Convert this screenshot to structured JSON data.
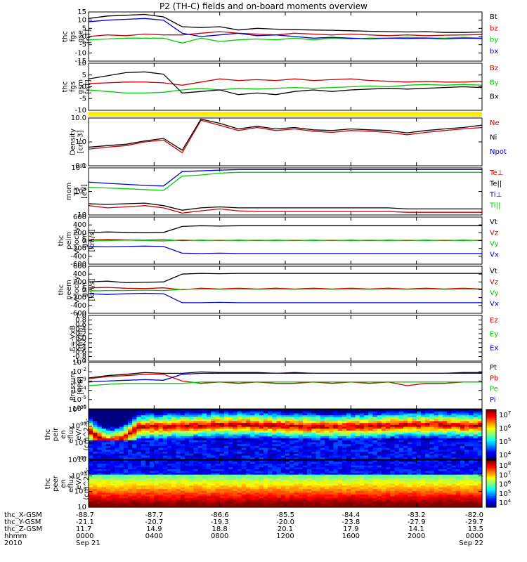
{
  "title": "P2 (TH-C) fields and on-board moments overview",
  "chart_data": {
    "type": "line",
    "title": "P2 (TH-C) fields and on-board moments overview",
    "panels": [
      {
        "id": "fgs_gse",
        "ylabel": [
          "thc",
          "fgs",
          "gse",
          "[nT]"
        ],
        "yscale": "linear",
        "ylim": [
          -15,
          15
        ],
        "yticks": [
          "15",
          "10",
          "5",
          "0",
          "-5",
          "-10",
          "-15"
        ],
        "series": [
          {
            "name": "Bt",
            "color": "#000000",
            "values": [
              11.0,
              12.5,
              13.0,
              13.5,
              12.0,
              6.0,
              5.5,
              6.0,
              4.0,
              5.0,
              4.5,
              4.2,
              4.0,
              3.8,
              3.5,
              3.2,
              3.0,
              2.8,
              3.0,
              2.5,
              2.5,
              2.8
            ]
          },
          {
            "name": "bz",
            "color": "#cc0000",
            "values": [
              0.0,
              1.0,
              0.5,
              1.5,
              1.0,
              1.0,
              2.0,
              3.0,
              2.0,
              1.5,
              1.0,
              2.0,
              1.5,
              1.0,
              1.5,
              1.0,
              0.5,
              1.0,
              0.5,
              0.8,
              1.0,
              1.2
            ]
          },
          {
            "name": "by",
            "color": "#00cc00",
            "values": [
              -2.0,
              -1.5,
              -1.0,
              -1.0,
              -1.0,
              -4.0,
              -1.0,
              -3.0,
              -2.0,
              -1.5,
              -2.0,
              -1.0,
              -2.0,
              -1.0,
              -1.5,
              -1.0,
              -1.0,
              -0.5,
              -0.8,
              -1.0,
              -0.5,
              -1.0
            ]
          },
          {
            "name": "bx",
            "color": "#0000cc",
            "values": [
              9.0,
              10.0,
              10.5,
              11.0,
              10.0,
              2.0,
              0.0,
              1.0,
              2.0,
              0.5,
              1.0,
              0.0,
              -1.0,
              -0.5,
              -1.0,
              -1.5,
              -1.0,
              -1.2,
              -1.0,
              -1.5,
              -1.0,
              -1.2
            ]
          }
        ]
      },
      {
        "id": "fgs_gsm",
        "ylabel": [
          "thc",
          "fgs",
          "gsm",
          "[nT]"
        ],
        "yscale": "linear",
        "ylim": [
          -15,
          15
        ],
        "yticks": [
          "10",
          "5",
          "0",
          "-5",
          "-10"
        ],
        "series": [
          {
            "name": "Bz",
            "color": "#cc0000",
            "values": [
              2.0,
              2.5,
              3.0,
              3.0,
              2.5,
              1.0,
              3.0,
              5.0,
              4.0,
              4.5,
              4.0,
              5.0,
              4.0,
              4.5,
              5.0,
              4.0,
              3.5,
              3.0,
              3.5,
              3.0,
              3.0,
              3.5
            ]
          },
          {
            "name": "By",
            "color": "#00cc00",
            "values": [
              -2.0,
              -3.0,
              -4.0,
              -4.0,
              -3.5,
              -2.0,
              -1.0,
              -2.0,
              -1.0,
              -1.5,
              -1.0,
              -0.5,
              -1.0,
              -0.5,
              0.0,
              0.5,
              0.0,
              1.0,
              1.5,
              1.0,
              1.5,
              1.0
            ]
          },
          {
            "name": "Bx",
            "color": "#000000",
            "values": [
              5.0,
              7.0,
              9.0,
              9.5,
              8.0,
              -4.0,
              -3.0,
              -2.0,
              -5.0,
              -4.0,
              -5.0,
              -3.0,
              -2.0,
              -3.0,
              -2.0,
              -1.5,
              -1.0,
              -1.5,
              -1.0,
              -0.5,
              0.0,
              -0.5
            ]
          }
        ]
      },
      {
        "id": "density",
        "ylabel": [
          "Density",
          "[cm-3]"
        ],
        "yscale": "log",
        "ylim": [
          0.1,
          10
        ],
        "yticks": [
          "10.0",
          "1.0",
          "0.1"
        ],
        "series": [
          {
            "name": "Ne",
            "color": "#cc0000",
            "values": [
              0.5,
              0.6,
              0.7,
              1.0,
              1.2,
              0.35,
              8.0,
              5.0,
              3.0,
              4.0,
              3.0,
              3.5,
              2.8,
              2.5,
              3.0,
              2.8,
              2.5,
              2.0,
              2.5,
              3.0,
              3.5,
              4.0
            ]
          },
          {
            "name": "Ni",
            "color": "#000000",
            "values": [
              0.6,
              0.7,
              0.8,
              1.1,
              1.4,
              0.45,
              9.0,
              6.0,
              3.5,
              4.5,
              3.5,
              4.0,
              3.2,
              3.0,
              3.5,
              3.2,
              3.0,
              2.4,
              3.0,
              3.5,
              4.0,
              5.0
            ]
          },
          {
            "name": "Npot",
            "color": "#0000cc",
            "values": []
          }
        ]
      },
      {
        "id": "temperature",
        "ylabel": [
          "mom",
          "T3",
          "[eV]"
        ],
        "yscale": "log",
        "ylim": [
          10,
          1000
        ],
        "yticks": [
          "1000",
          "100",
          "10"
        ],
        "series": [
          {
            "name": "Te⊥",
            "color": "#cc0000",
            "values": [
              25,
              20,
              22,
              25,
              20,
              12,
              15,
              18,
              15,
              14,
              14,
              14,
              14,
              14,
              14,
              14,
              14,
              13,
              13,
              13,
              13,
              13
            ]
          },
          {
            "name": "Te||",
            "color": "#000000",
            "values": [
              30,
              28,
              30,
              32,
              25,
              16,
              20,
              22,
              20,
              20,
              20,
              20,
              20,
              20,
              20,
              20,
              20,
              18,
              18,
              18,
              18,
              18
            ]
          },
          {
            "name": "Ti⊥",
            "color": "#0000cc",
            "values": [
              250,
              220,
              200,
              180,
              170,
              700,
              750,
              800,
              850,
              850,
              850,
              850,
              850,
              850,
              850,
              850,
              850,
              850,
              850,
              850,
              850,
              850
            ]
          },
          {
            "name": "Ti||",
            "color": "#00cc00",
            "values": [
              150,
              140,
              130,
              120,
              110,
              450,
              500,
              600,
              650,
              650,
              650,
              650,
              650,
              650,
              650,
              650,
              650,
              650,
              650,
              650,
              650,
              650
            ]
          }
        ]
      },
      {
        "id": "velocity_peim",
        "ylabel": [
          "thc",
          "peim",
          "velocity",
          "gsm",
          "[km/s]"
        ],
        "yscale": "linear",
        "ylim": [
          -600,
          600
        ],
        "yticks": [
          "600",
          "400",
          "200",
          "0",
          "-200",
          "-400",
          "-600"
        ],
        "series": [
          {
            "name": "Vt",
            "color": "#000000",
            "values": [
              200,
              220,
              210,
              200,
              210,
              360,
              380,
              370,
              380,
              380,
              380,
              380,
              380,
              380,
              380,
              380,
              380,
              380,
              380,
              380,
              380,
              380
            ]
          },
          {
            "name": "Vz",
            "color": "#cc0000",
            "values": [
              20,
              30,
              20,
              10,
              20,
              0,
              10,
              0,
              10,
              0,
              10,
              0,
              10,
              0,
              10,
              0,
              10,
              0,
              10,
              0,
              10,
              0
            ]
          },
          {
            "name": "Vy",
            "color": "#00cc00",
            "values": [
              -10,
              0,
              10,
              0,
              -10,
              20,
              0,
              10,
              0,
              10,
              0,
              10,
              0,
              10,
              0,
              10,
              0,
              10,
              0,
              10,
              0,
              10
            ]
          },
          {
            "name": "Vx",
            "color": "#0000cc",
            "values": [
              -150,
              -160,
              -150,
              -140,
              -150,
              -320,
              -330,
              -320,
              -330,
              -330,
              -330,
              -330,
              -330,
              -330,
              -330,
              -330,
              -330,
              -330,
              -330,
              -330,
              -330,
              -330
            ]
          }
        ]
      },
      {
        "id": "velocity_peem",
        "ylabel": [
          "thc",
          "peem",
          "velocity",
          "gsm",
          "[km/s]"
        ],
        "yscale": "linear",
        "ylim": [
          -600,
          600
        ],
        "yticks": [
          "600",
          "400",
          "200",
          "0",
          "-200",
          "-400",
          "-600"
        ],
        "series": [
          {
            "name": "Vt",
            "color": "#000000",
            "values": [
              200,
              220,
              180,
              190,
              200,
              400,
              420,
              410,
              420,
              420,
              420,
              420,
              420,
              420,
              420,
              420,
              420,
              420,
              420,
              420,
              420,
              420
            ]
          },
          {
            "name": "Vz",
            "color": "#cc0000",
            "values": [
              50,
              60,
              40,
              30,
              50,
              0,
              40,
              20,
              40,
              20,
              40,
              20,
              40,
              20,
              40,
              20,
              40,
              20,
              40,
              20,
              40,
              20
            ]
          },
          {
            "name": "Vy",
            "color": "#00cc00",
            "values": [
              -30,
              -20,
              -20,
              -10,
              -20,
              10,
              20,
              10,
              20,
              10,
              20,
              10,
              20,
              10,
              20,
              10,
              20,
              10,
              20,
              10,
              20,
              10
            ]
          },
          {
            "name": "Vx",
            "color": "#0000cc",
            "values": [
              -100,
              -120,
              -100,
              -90,
              -100,
              -330,
              -330,
              -320,
              -330,
              -330,
              -330,
              -330,
              -330,
              -330,
              -330,
              -330,
              -330,
              -330,
              -330,
              -330,
              -330,
              -330
            ]
          }
        ]
      },
      {
        "id": "efield",
        "ylabel": [
          "E=-VxB",
          "[mV/m]"
        ],
        "yscale": "linear",
        "ylim": [
          -1,
          1
        ],
        "yticks": [
          "1.0",
          "0.8",
          "0.6",
          "0.4",
          "0.2",
          "0.0",
          "-0.2",
          "-0.4",
          "-0.6",
          "-0.8",
          "-1.0"
        ],
        "series": [
          {
            "name": "Ez",
            "color": "#cc0000",
            "values": []
          },
          {
            "name": "Ey",
            "color": "#00cc00",
            "values": []
          },
          {
            "name": "Ex",
            "color": "#0000cc",
            "values": []
          }
        ]
      },
      {
        "id": "pressure",
        "ylabel": [
          "Pressure",
          "[nPa]"
        ],
        "yscale": "log",
        "ylim": [
          1e-06,
          1
        ],
        "yticks": [
          "10-1",
          "10-2",
          "10-3",
          "10-4",
          "10-5",
          "10-6"
        ],
        "series": [
          {
            "name": "Pt",
            "color": "#000000",
            "values": [
              0.01,
              0.02,
              0.03,
              0.05,
              0.04,
              0.04,
              0.06,
              0.05,
              0.05,
              0.05,
              0.04,
              0.05,
              0.04,
              0.04,
              0.04,
              0.04,
              0.04,
              0.04,
              0.04,
              0.04,
              0.05,
              0.05
            ]
          },
          {
            "name": "Pb",
            "color": "#cc0000",
            "values": [
              0.008,
              0.015,
              0.02,
              0.03,
              0.03,
              0.004,
              0.002,
              0.003,
              0.002,
              0.003,
              0.002,
              0.002,
              0.003,
              0.002,
              0.003,
              0.002,
              0.003,
              0.001,
              0.002,
              0.002,
              0.003,
              0.003
            ]
          },
          {
            "name": "Pe",
            "color": "#00cc00",
            "values": [
              0.001,
              0.0015,
              0.002,
              0.002,
              0.002,
              0.002,
              0.003,
              0.003,
              0.003,
              0.003,
              0.003,
              0.003,
              0.003,
              0.003,
              0.003,
              0.003,
              0.003,
              0.003,
              0.003,
              0.003,
              0.003,
              0.003
            ]
          },
          {
            "name": "Pi",
            "color": "#0000cc",
            "values": [
              0.003,
              0.004,
              0.005,
              0.006,
              0.005,
              0.03,
              0.04,
              0.04,
              0.04,
              0.04,
              0.04,
              0.04,
              0.04,
              0.04,
              0.04,
              0.04,
              0.04,
              0.04,
              0.04,
              0.04,
              0.04,
              0.04
            ]
          }
        ]
      },
      {
        "id": "ion_spectrogram",
        "type": "heatmap",
        "ylabel": [
          "thc",
          "peir",
          "en",
          "eflux",
          "eV/",
          "(cm^2-s-",
          "sr-eV)"
        ],
        "yscale": "log",
        "ylim": [
          10,
          10000
        ],
        "yticks": [
          "10000",
          "1000",
          "100",
          "10"
        ],
        "colorbar_ticks": [
          "10^7",
          "10^6",
          "10^5",
          "10^4"
        ]
      },
      {
        "id": "electron_spectrogram",
        "type": "heatmap",
        "ylabel": [
          "thc",
          "peer",
          "en",
          "eflux",
          "eV/",
          "(cm^2-s-",
          "sr-eV)"
        ],
        "yscale": "log",
        "ylim": [
          10,
          10000
        ],
        "yticks": [
          "10000",
          "1000",
          "100",
          "10"
        ],
        "colorbar_ticks": [
          "10^8",
          "10^7",
          "10^6",
          "10^5",
          "10^4"
        ]
      }
    ],
    "x_axis": {
      "row_labels": [
        "thc_X-GSM",
        "thc_Y-GSM",
        "thc_Z-GSM",
        "hhmm",
        "2010"
      ],
      "columns": [
        {
          "rows": [
            "-88.7",
            "-21.1",
            "11.7",
            "0000",
            "Sep 21"
          ]
        },
        {
          "rows": [
            "-87.7",
            "-20.7",
            "14.9",
            "0400",
            ""
          ]
        },
        {
          "rows": [
            "-86.6",
            "-19.3",
            "18.8",
            "0800",
            ""
          ]
        },
        {
          "rows": [
            "-85.5",
            "-20.0",
            "20.1",
            "1200",
            ""
          ]
        },
        {
          "rows": [
            "-84.4",
            "-23.8",
            "17.9",
            "1600",
            ""
          ]
        },
        {
          "rows": [
            "-83.2",
            "-27.9",
            "14.1",
            "2000",
            ""
          ]
        },
        {
          "rows": [
            "-82.0",
            "-29.7",
            "13.5",
            "0000",
            "Sep 22"
          ]
        }
      ]
    }
  }
}
